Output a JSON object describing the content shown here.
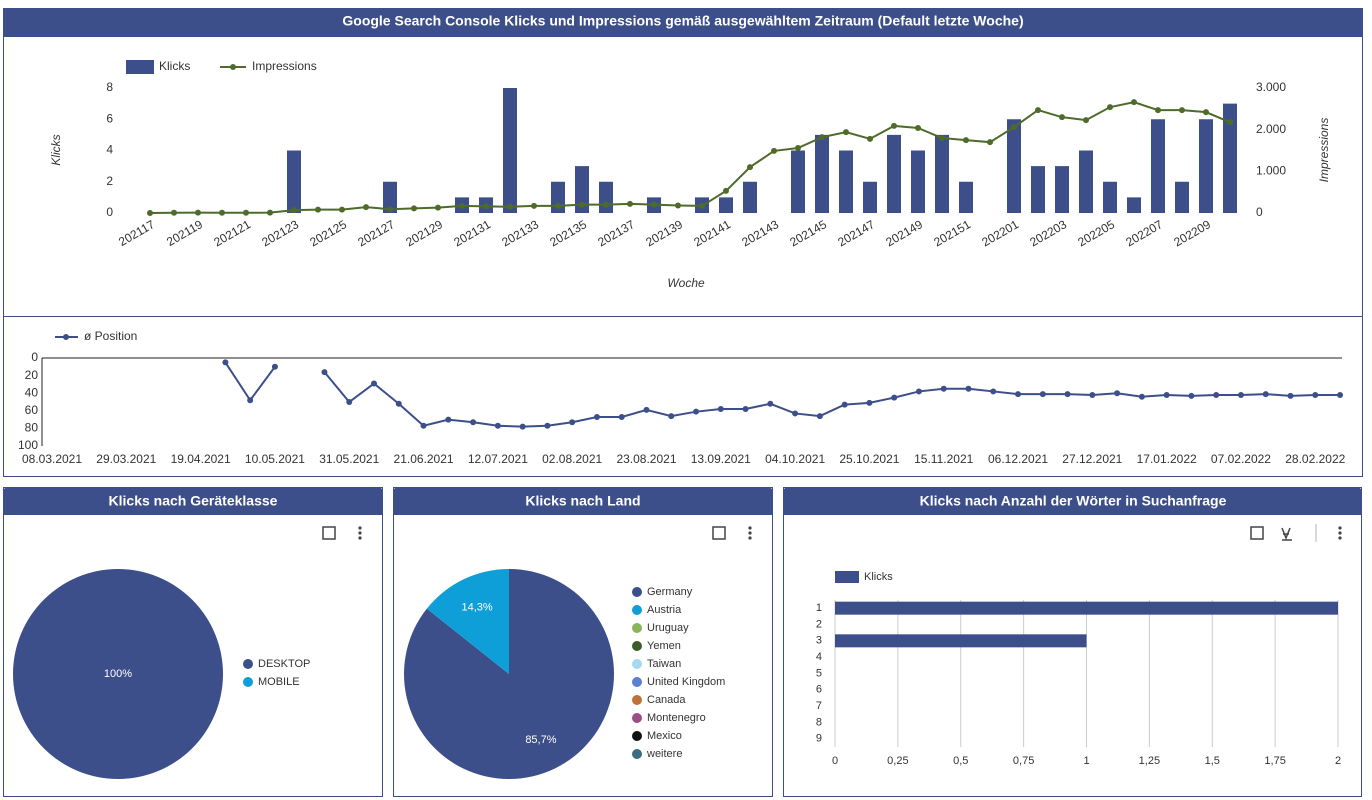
{
  "chart_data": [
    {
      "type": "combo",
      "title": "Google Search Console Klicks und Impressions gemäß ausgewähltem Zeitraum (Default letzte Woche)",
      "x_label": "Woche",
      "y_label": "Klicks",
      "y2_label": "Impressions",
      "categories": [
        "202117",
        null,
        "202119",
        null,
        "202121",
        null,
        "202123",
        null,
        "202125",
        null,
        "202127",
        null,
        "202129",
        null,
        "202131",
        null,
        "202133",
        null,
        "202135",
        null,
        "202137",
        null,
        "202139",
        null,
        "202141",
        null,
        "202143",
        null,
        "202145",
        null,
        "202147",
        null,
        "202149",
        null,
        "202151",
        null,
        "202201",
        null,
        "202203",
        null,
        "202205",
        null,
        "202207",
        null,
        "202209",
        null
      ],
      "series": [
        {
          "name": "Klicks",
          "type": "bar",
          "color": "#3d4f8b",
          "values": [
            0,
            0,
            0,
            0,
            0,
            0,
            4,
            0,
            0,
            0,
            2,
            0,
            0,
            1,
            1,
            8,
            0,
            2,
            3,
            2,
            0,
            1,
            0,
            1,
            1,
            2,
            0,
            4,
            5,
            4,
            2,
            5,
            4,
            5,
            2,
            0,
            6,
            3,
            3,
            4,
            2,
            1,
            6,
            2,
            6,
            7
          ]
        },
        {
          "name": "Impressions",
          "type": "line",
          "axis": "y2",
          "color": "#4e6b2a",
          "values": [
            0,
            5,
            10,
            5,
            5,
            10,
            70,
            80,
            80,
            140,
            90,
            110,
            130,
            170,
            160,
            150,
            170,
            170,
            200,
            200,
            220,
            200,
            180,
            170,
            530,
            1100,
            1490,
            1560,
            1820,
            1940,
            1780,
            2090,
            2040,
            1800,
            1750,
            1700,
            2060,
            2470,
            2300,
            2230,
            2540,
            2660,
            2470,
            2470,
            2420,
            2180
          ]
        }
      ],
      "ylim": [
        0,
        8
      ],
      "yticks": [
        0,
        2,
        4,
        6,
        8
      ],
      "y2lim": [
        0,
        3000
      ],
      "y2ticks": [
        0,
        {
          "value": 1000,
          "label": "1.000"
        },
        {
          "value": 2000,
          "label": "2.000"
        },
        {
          "value": 3000,
          "label": "3.000"
        }
      ],
      "legend": "top-left"
    },
    {
      "type": "line",
      "categories": [
        "08.03.2021",
        null,
        null,
        "29.03.2021",
        null,
        null,
        "19.04.2021",
        null,
        null,
        "10.05.2021",
        null,
        null,
        "31.05.2021",
        null,
        null,
        "21.06.2021",
        null,
        null,
        "12.07.2021",
        null,
        null,
        "02.08.2021",
        null,
        null,
        "23.08.2021",
        null,
        null,
        "13.09.2021",
        null,
        null,
        "04.10.2021",
        null,
        null,
        "25.10.2021",
        null,
        null,
        "15.11.2021",
        null,
        null,
        "06.12.2021",
        null,
        null,
        "27.12.2021",
        null,
        null,
        "17.01.2022",
        null,
        null,
        "07.02.2022",
        null,
        null,
        "28.02.2022",
        null
      ],
      "series": [
        {
          "name": "ø Position",
          "color": "#3d4f8b",
          "values": [
            null,
            null,
            null,
            null,
            null,
            null,
            null,
            5,
            48,
            10,
            null,
            16,
            50,
            29,
            52,
            77,
            70,
            73,
            77,
            78,
            77,
            73,
            67,
            67,
            59,
            66,
            61,
            58,
            58,
            52,
            63,
            66,
            53,
            51,
            45,
            38,
            35,
            35,
            38,
            41,
            41,
            41,
            42,
            40,
            44,
            42,
            43,
            42,
            42,
            41,
            43,
            42,
            42
          ]
        }
      ],
      "ylim": [
        100,
        0
      ],
      "yticks": [
        0,
        20,
        40,
        60,
        80,
        100
      ],
      "legend": "top-left"
    },
    {
      "type": "pie",
      "title": "Klicks nach Geräteklasse",
      "categories": [
        "DESKTOP",
        "MOBILE"
      ],
      "values": [
        100,
        0
      ],
      "value_labels": [
        "100%",
        null
      ],
      "colors": [
        "#3d4f8b",
        "#0e9fd8"
      ],
      "legend": "right"
    },
    {
      "type": "pie",
      "title": "Klicks nach Land",
      "categories": [
        "Germany",
        "Austria",
        "Uruguay",
        "Yemen",
        "Taiwan",
        "United Kingdom",
        "Canada",
        "Montenegro",
        "Mexico",
        "weitere"
      ],
      "values": [
        85.7,
        14.3,
        0,
        0,
        0,
        0,
        0,
        0,
        0,
        0
      ],
      "value_labels": [
        "85,7%",
        "14,3%",
        null,
        null,
        null,
        null,
        null,
        null,
        null,
        null
      ],
      "colors": [
        "#3d4f8b",
        "#0e9fd8",
        "#8bb35a",
        "#3d5d2a",
        "#a6d9ee",
        "#5b7fd1",
        "#c0703a",
        "#9c4d85",
        "#111111",
        "#3a6e80"
      ],
      "legend": "right"
    },
    {
      "type": "hbar",
      "title": "Klicks nach Anzahl der Wörter in Suchanfrage",
      "categories": [
        "1",
        "2",
        "3",
        "4",
        "5",
        "6",
        "7",
        "8",
        "9"
      ],
      "series": [
        {
          "name": "Klicks",
          "color": "#3d4f8b",
          "values": [
            2,
            0,
            1,
            0,
            0,
            0,
            0,
            0,
            0
          ]
        }
      ],
      "xlim": [
        0,
        2
      ],
      "xticks": [
        0,
        {
          "value": 0.25,
          "label": "0,25"
        },
        {
          "value": 0.5,
          "label": "0,5"
        },
        {
          "value": 0.75,
          "label": "0,75"
        },
        1,
        {
          "value": 1.25,
          "label": "1,25"
        },
        {
          "value": 1.5,
          "label": "1,5"
        },
        {
          "value": 1.75,
          "label": "1,75"
        },
        2
      ],
      "grid": true,
      "legend": "top-left"
    }
  ]
}
